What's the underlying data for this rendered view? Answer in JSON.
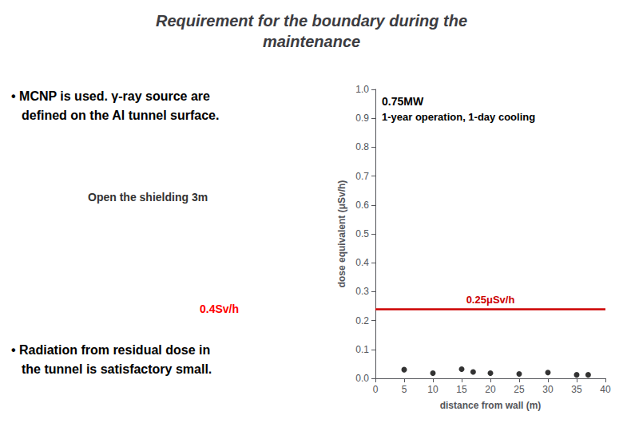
{
  "chart_data": {
    "type": "scatter",
    "title": "Requirement for the boundary during the\nmaintenance",
    "x_label": "distance from wall (m)",
    "y_label": "dose equivalent (μSv/h)",
    "x": [
      5,
      10,
      15,
      17,
      20,
      25,
      30,
      35,
      37
    ],
    "values": [
      0.03,
      0.018,
      0.032,
      0.022,
      0.018,
      0.015,
      0.02,
      0.012,
      0.012
    ],
    "color": "#000000",
    "xlim": [
      0,
      40
    ],
    "xticks": [
      0,
      5,
      10,
      15,
      20,
      25,
      30,
      35,
      40
    ],
    "ylim": [
      0,
      1.0
    ],
    "yticks": [
      {
        "value": 0,
        "label": "0.0"
      },
      {
        "value": 0.1,
        "label": "0.1"
      },
      {
        "value": 0.2,
        "label": "0.2"
      },
      {
        "value": 0.3,
        "label": "0.3"
      },
      {
        "value": 0.4,
        "label": "0.4"
      },
      {
        "value": 0.5,
        "label": "0.5"
      },
      {
        "value": 0.6,
        "label": "0.6"
      },
      {
        "value": 0.7,
        "label": "0.7"
      },
      {
        "value": 0.8,
        "label": "0.8"
      },
      {
        "value": 0.9,
        "label": "0.9"
      },
      {
        "value": 1.0,
        "label": "1.0"
      }
    ],
    "grid": false,
    "hlines": [
      {
        "y": 0.245,
        "color": "#cc0000",
        "label": "0.25μSv/h"
      }
    ],
    "annotations": [
      "0.75MW",
      "1-year operation, 1-day cooling"
    ],
    "notes": [
      {
        "lines": [
          "• MCNP is used. γ-ray source are",
          "defined on the Al tunnel surface."
        ]
      },
      {
        "text": "Open the shielding 3m"
      },
      {
        "text": "0.4Sv/h",
        "color": "red"
      },
      {
        "lines": [
          "• Radiation from residual dose in",
          "the tunnel is satisfactory small."
        ]
      }
    ]
  }
}
